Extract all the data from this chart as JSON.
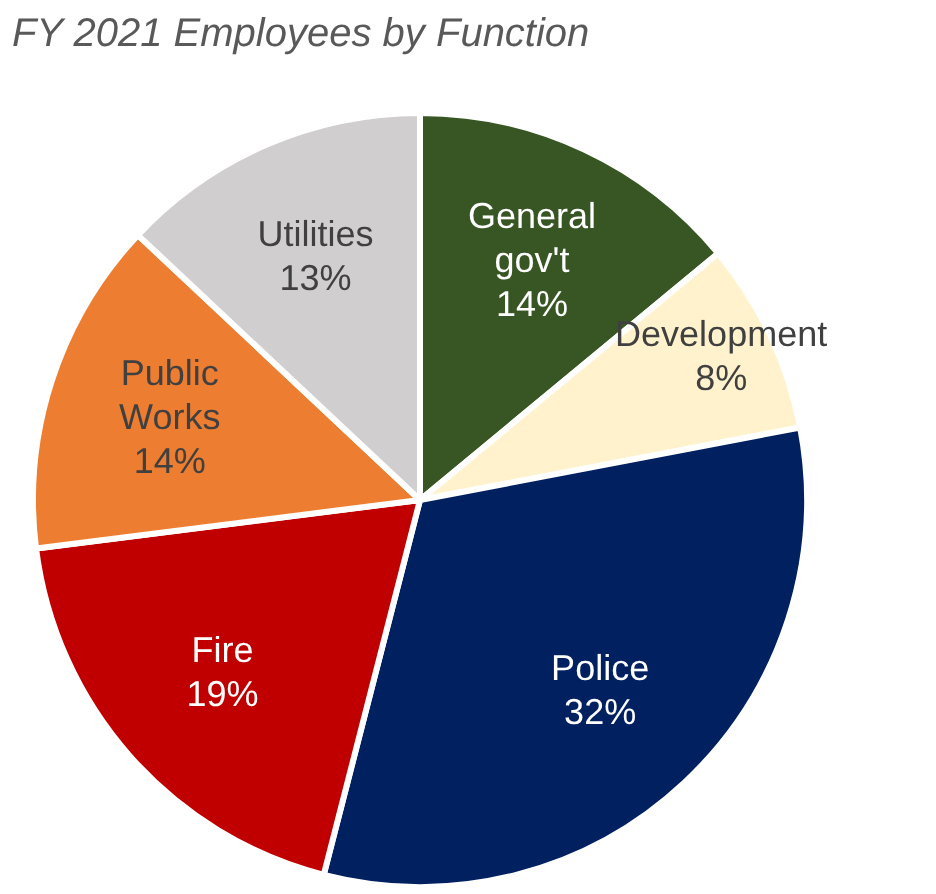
{
  "chart_data": {
    "type": "pie",
    "title": "FY 2021 Employees by Function",
    "categories": [
      "General gov't",
      "Development",
      "Police",
      "Fire",
      "Public Works",
      "Utilities"
    ],
    "values": [
      14,
      8,
      32,
      19,
      14,
      13
    ],
    "colors": [
      "#375623",
      "#fff2cc",
      "#002060",
      "#c00000",
      "#ed7d31",
      "#d0cece"
    ],
    "value_labels": [
      "14%",
      "8%",
      "32%",
      "19%",
      "14%",
      "13%"
    ],
    "legend": false
  }
}
